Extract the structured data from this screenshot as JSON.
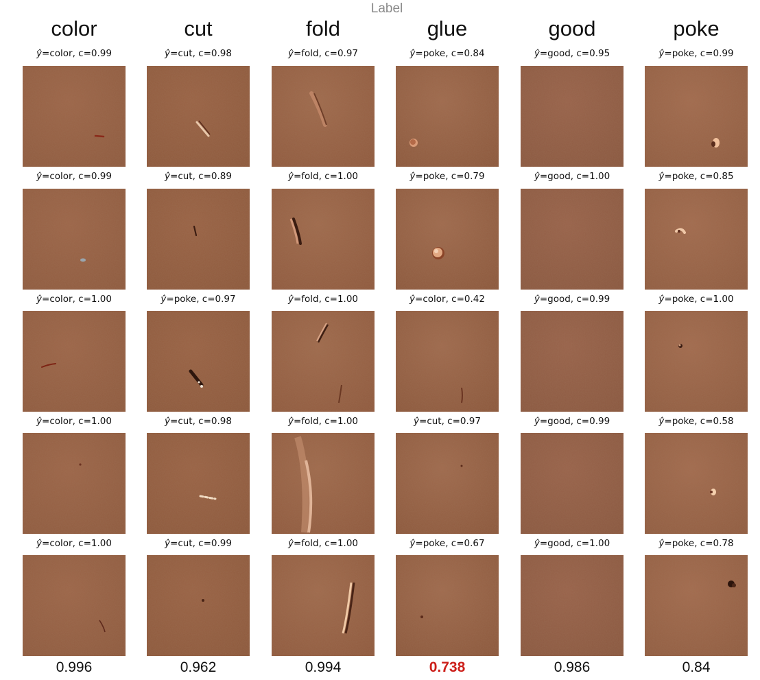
{
  "header_label": "Label",
  "columns": [
    {
      "label": "color",
      "score": "0.996",
      "rows": [
        {
          "pred": "color",
          "conf": "0.99"
        },
        {
          "pred": "color",
          "conf": "0.99"
        },
        {
          "pred": "color",
          "conf": "1.00"
        },
        {
          "pred": "color",
          "conf": "1.00"
        },
        {
          "pred": "color",
          "conf": "1.00"
        }
      ]
    },
    {
      "label": "cut",
      "score": "0.962",
      "rows": [
        {
          "pred": "cut",
          "conf": "0.98"
        },
        {
          "pred": "cut",
          "conf": "0.89"
        },
        {
          "pred": "poke",
          "conf": "0.97"
        },
        {
          "pred": "cut",
          "conf": "0.98"
        },
        {
          "pred": "cut",
          "conf": "0.99"
        }
      ]
    },
    {
      "label": "fold",
      "score": "0.994",
      "rows": [
        {
          "pred": "fold",
          "conf": "0.97"
        },
        {
          "pred": "fold",
          "conf": "1.00"
        },
        {
          "pred": "fold",
          "conf": "1.00"
        },
        {
          "pred": "fold",
          "conf": "1.00"
        },
        {
          "pred": "fold",
          "conf": "1.00"
        }
      ]
    },
    {
      "label": "glue",
      "score": "0.738",
      "score_highlight": true,
      "rows": [
        {
          "pred": "poke",
          "conf": "0.84"
        },
        {
          "pred": "poke",
          "conf": "0.79"
        },
        {
          "pred": "color",
          "conf": "0.42"
        },
        {
          "pred": "cut",
          "conf": "0.97"
        },
        {
          "pred": "poke",
          "conf": "0.67"
        }
      ]
    },
    {
      "label": "good",
      "score": "0.986",
      "rows": [
        {
          "pred": "good",
          "conf": "0.95"
        },
        {
          "pred": "good",
          "conf": "1.00"
        },
        {
          "pred": "good",
          "conf": "0.99"
        },
        {
          "pred": "good",
          "conf": "0.99"
        },
        {
          "pred": "good",
          "conf": "1.00"
        }
      ]
    },
    {
      "label": "poke",
      "score": "0.84",
      "rows": [
        {
          "pred": "poke",
          "conf": "0.99"
        },
        {
          "pred": "poke",
          "conf": "0.85"
        },
        {
          "pred": "poke",
          "conf": "1.00"
        },
        {
          "pred": "poke",
          "conf": "0.58"
        },
        {
          "pred": "poke",
          "conf": "0.78"
        }
      ]
    }
  ],
  "colors": {
    "leather": "#9c6446",
    "leather_light": "#b07456",
    "leather_dark": "#7e4e35",
    "highlight_score": "#cc1f1a"
  }
}
